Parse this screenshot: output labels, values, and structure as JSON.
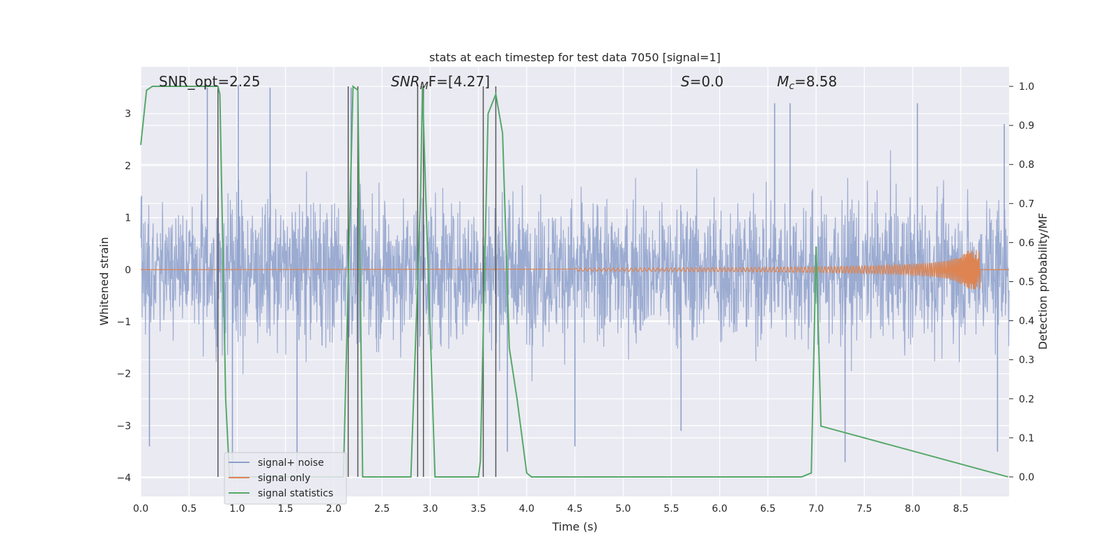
{
  "chart_data": {
    "type": "line",
    "title": "stats at each timestep for test data 7050 [signal=1]",
    "xlabel": "Time (s)",
    "ylabel_left": "Whitened strain",
    "ylabel_right": "Detection probability/MF",
    "xlim": [
      0.0,
      9.0
    ],
    "ylim_left": [
      -4.36,
      3.9
    ],
    "ylim_right": [
      -0.05,
      1.05
    ],
    "grid": true,
    "background": "#eaeaf2",
    "x_ticks": [
      "0.0",
      "0.5",
      "1.0",
      "1.5",
      "2.0",
      "2.5",
      "3.0",
      "3.5",
      "4.0",
      "4.5",
      "5.0",
      "5.5",
      "6.0",
      "6.5",
      "7.0",
      "7.5",
      "8.0",
      "8.5"
    ],
    "y_ticks_left": [
      "3",
      "2",
      "1",
      "0",
      "−1",
      "−2",
      "−3",
      "−4"
    ],
    "y_ticks_right": [
      "1.0",
      "0.9",
      "0.8",
      "0.7",
      "0.6",
      "0.5",
      "0.4",
      "0.3",
      "0.2",
      "0.1",
      "0.0"
    ],
    "annotations": {
      "snr_opt": "SNR_opt=2.25",
      "snr_mf_base": "SNR",
      "snr_mf_sub": "M",
      "snr_mf_rest": "F=[4.27]",
      "s_sym": "S",
      "s_val": "=0.0",
      "mc_sym": "M",
      "mc_sub": "c",
      "mc_val": "=8.58"
    },
    "legend": {
      "placement": "lower-left",
      "entries": [
        "signal+ noise",
        "signal only",
        "signal statistics"
      ]
    },
    "colors": {
      "noise": "#8da0cb",
      "signal": "#dd8452",
      "stat": "#55a868",
      "vline": "#555555"
    },
    "series": [
      {
        "name": "signal+ noise",
        "axis": "left",
        "style": "dense noise band",
        "band_typical": [
          -1.8,
          1.8
        ],
        "extreme_peaks": [
          [
            0.69,
            3.5
          ],
          [
            1.01,
            3.55
          ],
          [
            1.34,
            3.5
          ],
          [
            2.18,
            3.5
          ],
          [
            6.57,
            3.2
          ],
          [
            6.73,
            3.2
          ],
          [
            8.05,
            3.2
          ],
          [
            8.95,
            2.8
          ]
        ],
        "extreme_troughs": [
          [
            0.09,
            -3.4
          ],
          [
            0.95,
            -4.0
          ],
          [
            1.62,
            -3.9
          ],
          [
            3.8,
            -3.5
          ],
          [
            4.5,
            -3.4
          ],
          [
            5.6,
            -3.1
          ],
          [
            7.3,
            -3.7
          ],
          [
            8.88,
            -3.5
          ]
        ]
      },
      {
        "name": "signal only",
        "axis": "left",
        "style": "chirp",
        "x_start": 4.5,
        "x_peak": 8.7,
        "peak_amplitude": 0.38
      },
      {
        "name": "signal statistics",
        "axis": "right",
        "x": [
          0.0,
          0.06,
          0.12,
          0.8,
          0.82,
          0.88,
          0.92,
          2.1,
          2.2,
          2.25,
          2.3,
          2.8,
          2.9,
          2.92,
          2.95,
          3.05,
          3.5,
          3.52,
          3.6,
          3.68,
          3.75,
          3.82,
          3.9,
          4.0,
          4.05,
          6.85,
          6.95,
          7.0,
          7.05,
          8.99
        ],
        "y": [
          0.85,
          0.99,
          1.0,
          1.0,
          0.98,
          0.2,
          0.0,
          0.0,
          1.0,
          0.99,
          0.0,
          0.0,
          0.72,
          1.0,
          0.75,
          0.0,
          0.0,
          0.04,
          0.93,
          0.98,
          0.88,
          0.33,
          0.2,
          0.01,
          0.0,
          0.0,
          0.01,
          0.59,
          0.13,
          0.0
        ]
      }
    ],
    "vertical_lines": [
      0.8,
      2.15,
      2.25,
      2.87,
      2.93,
      3.55,
      3.68
    ]
  }
}
